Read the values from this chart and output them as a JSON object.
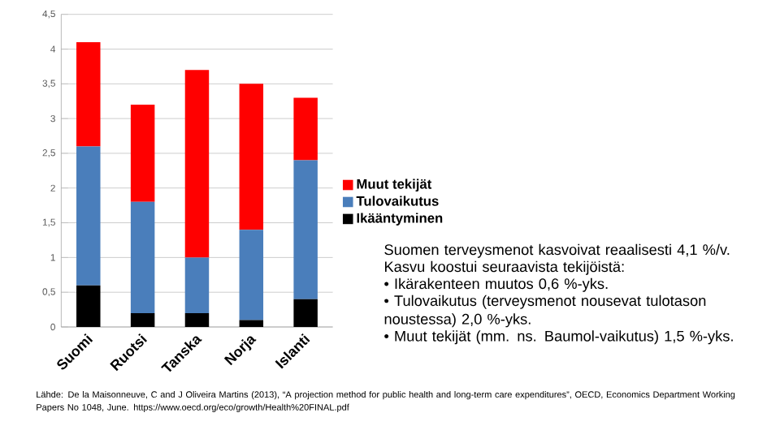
{
  "chart_data": {
    "type": "bar",
    "stacked": true,
    "categories": [
      "Suomi",
      "Ruotsi",
      "Tanska",
      "Norja",
      "Islanti"
    ],
    "series": [
      {
        "name": "Ikääntyminen",
        "color": "#000000",
        "values": [
          0.6,
          0.2,
          0.2,
          0.1,
          0.4
        ]
      },
      {
        "name": "Tulovaikutus",
        "color": "#4a7ebb",
        "values": [
          2.0,
          1.6,
          0.8,
          1.3,
          2.0
        ]
      },
      {
        "name": "Muut tekijät",
        "color": "#ff0000",
        "values": [
          1.5,
          1.4,
          2.7,
          2.1,
          0.9
        ]
      }
    ],
    "ylim": [
      0,
      4.5
    ],
    "yticks": [
      0,
      {
        "value": 0.5,
        "label": "0,5"
      },
      1,
      {
        "value": 1.5,
        "label": "1,5"
      },
      2,
      {
        "value": 2.5,
        "label": "2,5"
      },
      3,
      {
        "value": 3.5,
        "label": "3,5"
      },
      4,
      {
        "value": 4.5,
        "label": "4,5"
      }
    ],
    "grid": "y",
    "legend": "right",
    "annotations": [
      "Suomen terveysmenot  kasvoivat reaalisesti 4,1 %/v.",
      "Kasvu koostui seuraavista tekijöistä:",
      "• Ikärakenteen muutos 0,6 %-yks.",
      "• Tulovaikutus (terveysmenot nousevat tulotason noustessa) 2,0 %-yks.",
      "• Muut tekijät (mm. ns. Baumol-vaikutus) 1,5 %-yks.",
      "Lähde: De la Maisonneuve, C and J Oliveira Martins (2013), “A projection method for public health and long-term care expenditures”, OECD, Economics Department Working Papers No 1048, June. https://www.oecd.org/eco/growth/Health%20FINAL.pdf"
    ]
  }
}
